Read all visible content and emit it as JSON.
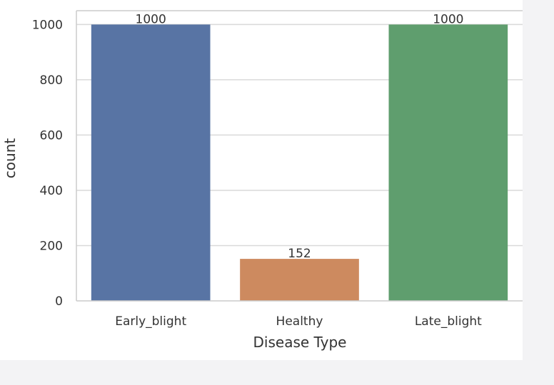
{
  "chart_data": {
    "type": "bar",
    "categories": [
      "Early_blight",
      "Healthy",
      "Late_blight"
    ],
    "values": [
      1000,
      152,
      1000
    ],
    "data_labels": [
      "1000",
      "152",
      "1000"
    ],
    "colors": [
      "#5874a4",
      "#cd8a5f",
      "#5f9e6e"
    ],
    "xlabel": "Disease Type",
    "ylabel": "count",
    "ylim": [
      0,
      1050
    ],
    "yticks": [
      0,
      200,
      400,
      600,
      800,
      1000
    ],
    "ytick_labels": [
      "0",
      "200",
      "400",
      "600",
      "800",
      "1000"
    ],
    "grid": true,
    "grid_axis": "y",
    "grid_color": "#d9d9d9",
    "plot_background": "#ffffff"
  }
}
